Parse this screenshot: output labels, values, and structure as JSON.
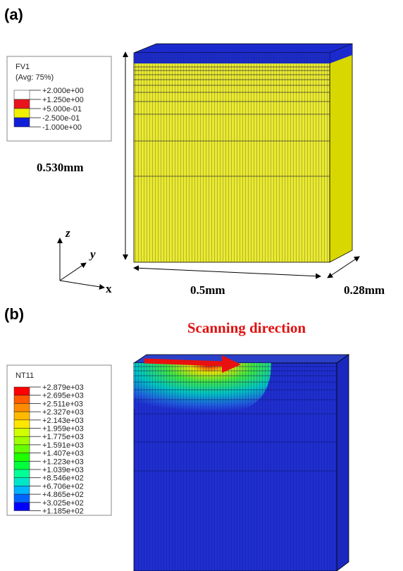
{
  "panel_a": {
    "label": "(a)",
    "legend": {
      "title": "FV1",
      "subtitle": "(Avg: 75%)",
      "entries": [
        "+2.000e+00",
        "+1.250e+00",
        "+5.000e-01",
        "-2.500e-01",
        "-1.000e+00"
      ],
      "colors": [
        "#ffffff",
        "#e8141c",
        "#f0f000",
        "#1020d8"
      ]
    },
    "height_label": "0.530mm",
    "width_label": "0.5mm",
    "depth_label": "0.28mm",
    "axes": {
      "z": "z",
      "y": "y",
      "x": "x"
    }
  },
  "panel_b": {
    "label": "(b)",
    "annotation": "Scanning direction",
    "legend": {
      "title": "NT11",
      "entries": [
        "+2.879e+03",
        "+2.695e+03",
        "+2.511e+03",
        "+2.327e+03",
        "+2.143e+03",
        "+1.959e+03",
        "+1.775e+03",
        "+1.591e+03",
        "+1.407e+03",
        "+1.223e+03",
        "+1.039e+03",
        "+8.546e+02",
        "+6.706e+02",
        "+4.865e+02",
        "+3.025e+02",
        "+1.185e+02"
      ],
      "colors": [
        "#ff0000",
        "#ff5a00",
        "#ff8c00",
        "#ffb900",
        "#ffe600",
        "#d2ff00",
        "#a0ff00",
        "#64ff00",
        "#1eff00",
        "#00ff3c",
        "#00ff96",
        "#00e6c8",
        "#00b4ff",
        "#0064ff",
        "#0000ff"
      ]
    }
  }
}
